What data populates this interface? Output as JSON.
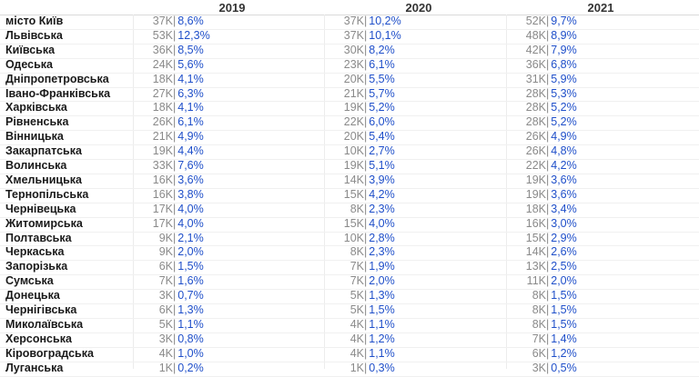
{
  "chart_data": {
    "type": "table",
    "columns": [
      "2019",
      "2020",
      "2021"
    ],
    "rows": [
      {
        "region": "місто Київ",
        "values": [
          {
            "count": "37K",
            "share": "8,6%"
          },
          {
            "count": "37K",
            "share": "10,2%"
          },
          {
            "count": "52K",
            "share": "9,7%"
          }
        ]
      },
      {
        "region": "Львівська",
        "values": [
          {
            "count": "53K",
            "share": "12,3%"
          },
          {
            "count": "37K",
            "share": "10,1%"
          },
          {
            "count": "48K",
            "share": "8,9%"
          }
        ]
      },
      {
        "region": "Київська",
        "values": [
          {
            "count": "36K",
            "share": "8,5%"
          },
          {
            "count": "30K",
            "share": "8,2%"
          },
          {
            "count": "42K",
            "share": "7,9%"
          }
        ]
      },
      {
        "region": "Одеська",
        "values": [
          {
            "count": "24K",
            "share": "5,6%"
          },
          {
            "count": "23K",
            "share": "6,1%"
          },
          {
            "count": "36K",
            "share": "6,8%"
          }
        ]
      },
      {
        "region": "Дніпропетровська",
        "values": [
          {
            "count": "18K",
            "share": "4,1%"
          },
          {
            "count": "20K",
            "share": "5,5%"
          },
          {
            "count": "31K",
            "share": "5,9%"
          }
        ]
      },
      {
        "region": "Івано-Франківська",
        "values": [
          {
            "count": "27K",
            "share": "6,3%"
          },
          {
            "count": "21K",
            "share": "5,7%"
          },
          {
            "count": "28K",
            "share": "5,3%"
          }
        ]
      },
      {
        "region": "Харківська",
        "values": [
          {
            "count": "18K",
            "share": "4,1%"
          },
          {
            "count": "19K",
            "share": "5,2%"
          },
          {
            "count": "28K",
            "share": "5,2%"
          }
        ]
      },
      {
        "region": "Рівненська",
        "values": [
          {
            "count": "26K",
            "share": "6,1%"
          },
          {
            "count": "22K",
            "share": "6,0%"
          },
          {
            "count": "28K",
            "share": "5,2%"
          }
        ]
      },
      {
        "region": "Вінницька",
        "values": [
          {
            "count": "21K",
            "share": "4,9%"
          },
          {
            "count": "20K",
            "share": "5,4%"
          },
          {
            "count": "26K",
            "share": "4,9%"
          }
        ]
      },
      {
        "region": "Закарпатська",
        "values": [
          {
            "count": "19K",
            "share": "4,4%"
          },
          {
            "count": "10K",
            "share": "2,7%"
          },
          {
            "count": "26K",
            "share": "4,8%"
          }
        ]
      },
      {
        "region": "Волинська",
        "values": [
          {
            "count": "33K",
            "share": "7,6%"
          },
          {
            "count": "19K",
            "share": "5,1%"
          },
          {
            "count": "22K",
            "share": "4,2%"
          }
        ]
      },
      {
        "region": "Хмельницька",
        "values": [
          {
            "count": "16K",
            "share": "3,6%"
          },
          {
            "count": "14K",
            "share": "3,9%"
          },
          {
            "count": "19K",
            "share": "3,6%"
          }
        ]
      },
      {
        "region": "Тернопільська",
        "values": [
          {
            "count": "16K",
            "share": "3,8%"
          },
          {
            "count": "15K",
            "share": "4,2%"
          },
          {
            "count": "19K",
            "share": "3,6%"
          }
        ]
      },
      {
        "region": "Чернівецька",
        "values": [
          {
            "count": "17K",
            "share": "4,0%"
          },
          {
            "count": "8K",
            "share": "2,3%"
          },
          {
            "count": "18K",
            "share": "3,4%"
          }
        ]
      },
      {
        "region": "Житомирська",
        "values": [
          {
            "count": "17K",
            "share": "4,0%"
          },
          {
            "count": "15K",
            "share": "4,0%"
          },
          {
            "count": "16K",
            "share": "3,0%"
          }
        ]
      },
      {
        "region": "Полтавська",
        "values": [
          {
            "count": "9K",
            "share": "2,1%"
          },
          {
            "count": "10K",
            "share": "2,8%"
          },
          {
            "count": "15K",
            "share": "2,9%"
          }
        ]
      },
      {
        "region": "Черкаська",
        "values": [
          {
            "count": "9K",
            "share": "2,0%"
          },
          {
            "count": "8K",
            "share": "2,3%"
          },
          {
            "count": "14K",
            "share": "2,6%"
          }
        ]
      },
      {
        "region": "Запорізька",
        "values": [
          {
            "count": "6K",
            "share": "1,5%"
          },
          {
            "count": "7K",
            "share": "1,9%"
          },
          {
            "count": "13K",
            "share": "2,5%"
          }
        ]
      },
      {
        "region": "Сумська",
        "values": [
          {
            "count": "7K",
            "share": "1,6%"
          },
          {
            "count": "7K",
            "share": "2,0%"
          },
          {
            "count": "11K",
            "share": "2,0%"
          }
        ]
      },
      {
        "region": "Донецька",
        "values": [
          {
            "count": "3K",
            "share": "0,7%"
          },
          {
            "count": "5K",
            "share": "1,3%"
          },
          {
            "count": "8K",
            "share": "1,5%"
          }
        ]
      },
      {
        "region": "Чернігівська",
        "values": [
          {
            "count": "6K",
            "share": "1,3%"
          },
          {
            "count": "5K",
            "share": "1,5%"
          },
          {
            "count": "8K",
            "share": "1,5%"
          }
        ]
      },
      {
        "region": "Миколаївська",
        "values": [
          {
            "count": "5K",
            "share": "1,1%"
          },
          {
            "count": "4K",
            "share": "1,1%"
          },
          {
            "count": "8K",
            "share": "1,5%"
          }
        ]
      },
      {
        "region": "Херсонська",
        "values": [
          {
            "count": "3K",
            "share": "0,8%"
          },
          {
            "count": "4K",
            "share": "1,2%"
          },
          {
            "count": "7K",
            "share": "1,4%"
          }
        ]
      },
      {
        "region": "Кіровоградська",
        "values": [
          {
            "count": "4K",
            "share": "1,0%"
          },
          {
            "count": "4K",
            "share": "1,1%"
          },
          {
            "count": "6K",
            "share": "1,2%"
          }
        ]
      },
      {
        "region": "Луганська",
        "values": [
          {
            "count": "1K",
            "share": "0,2%"
          },
          {
            "count": "1K",
            "share": "0,3%"
          },
          {
            "count": "3K",
            "share": "0,5%"
          }
        ]
      }
    ],
    "colors": {
      "count": "#8a8a8a",
      "share": "#1f4fc9",
      "region": "#1a1a1a"
    },
    "grid": true
  }
}
